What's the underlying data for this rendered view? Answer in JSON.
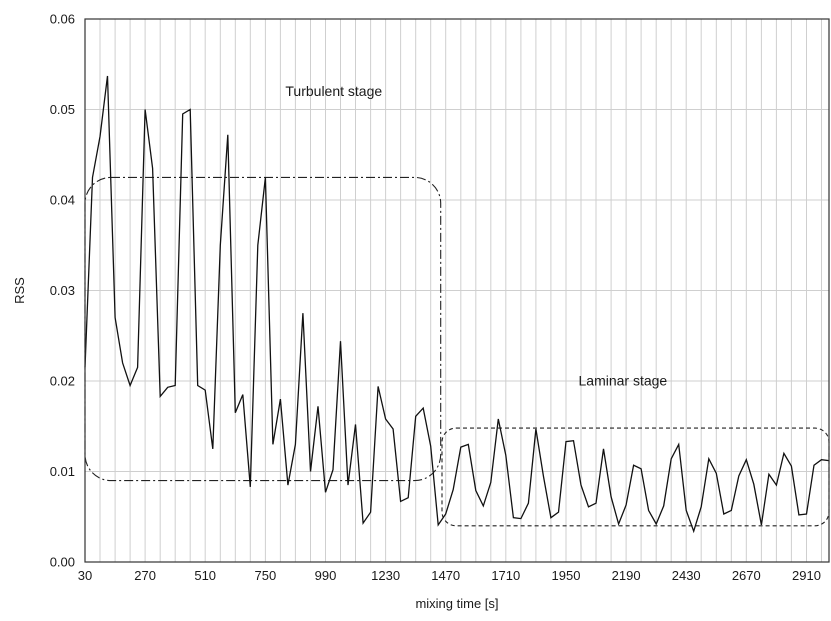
{
  "chart_data": {
    "type": "line",
    "title": "",
    "xlabel": "mixing time [s]",
    "ylabel": "RSS",
    "xlim": [
      30,
      3000
    ],
    "ylim": [
      0,
      0.06
    ],
    "grid": true,
    "x_ticks": [
      30,
      270,
      510,
      750,
      990,
      1230,
      1470,
      1710,
      1950,
      2190,
      2430,
      2670,
      2910
    ],
    "y_ticks": [
      0.0,
      0.01,
      0.02,
      0.03,
      0.04,
      0.05,
      0.06
    ],
    "y_tick_labels": [
      "0.00",
      "0.01",
      "0.02",
      "0.03",
      "0.04",
      "0.05",
      "0.06"
    ],
    "x_grid_step": 60,
    "series": [
      {
        "x": [
          30,
          60,
          90,
          120,
          150,
          180,
          210,
          240,
          270,
          300,
          330,
          360,
          390,
          420,
          450,
          480,
          510,
          540,
          570,
          600,
          630,
          660,
          690,
          720,
          750,
          780,
          810,
          840,
          870,
          900,
          930,
          960,
          990,
          1020,
          1050,
          1080,
          1110,
          1140,
          1170,
          1200,
          1230,
          1260,
          1290,
          1320,
          1350,
          1380,
          1410,
          1440,
          1470,
          1500,
          1530,
          1560,
          1590,
          1620,
          1650,
          1680,
          1710,
          1740,
          1770,
          1800,
          1830,
          1860,
          1890,
          1920,
          1950,
          1980,
          2010,
          2040,
          2070,
          2100,
          2130,
          2160,
          2190,
          2220,
          2250,
          2280,
          2310,
          2340,
          2370,
          2400,
          2430,
          2460,
          2490,
          2520,
          2550,
          2580,
          2610,
          2640,
          2670,
          2700,
          2730,
          2760,
          2790,
          2820,
          2850,
          2880,
          2910,
          2940,
          2970,
          3000
        ],
        "values": [
          0.0215,
          0.0425,
          0.047,
          0.0537,
          0.027,
          0.022,
          0.0195,
          0.0215,
          0.05,
          0.0435,
          0.0183,
          0.0193,
          0.0195,
          0.0495,
          0.05,
          0.0195,
          0.019,
          0.0125,
          0.035,
          0.0472,
          0.0165,
          0.0185,
          0.0083,
          0.035,
          0.0425,
          0.013,
          0.018,
          0.0085,
          0.013,
          0.0275,
          0.01,
          0.0172,
          0.0077,
          0.0102,
          0.0244,
          0.0085,
          0.0152,
          0.0043,
          0.0055,
          0.0194,
          0.0158,
          0.0147,
          0.0067,
          0.0071,
          0.0161,
          0.017,
          0.0128,
          0.0041,
          0.0053,
          0.008,
          0.0127,
          0.013,
          0.0079,
          0.0062,
          0.0088,
          0.0158,
          0.0118,
          0.0049,
          0.0048,
          0.0065,
          0.0147,
          0.0095,
          0.0049,
          0.0055,
          0.0133,
          0.0134,
          0.0085,
          0.0061,
          0.0065,
          0.0125,
          0.0072,
          0.0042,
          0.0063,
          0.0107,
          0.0103,
          0.0057,
          0.0042,
          0.0062,
          0.0114,
          0.013,
          0.0057,
          0.0034,
          0.0061,
          0.0114,
          0.0098,
          0.0053,
          0.0057,
          0.0095,
          0.0113,
          0.0086,
          0.0041,
          0.0097,
          0.0085,
          0.012,
          0.0106,
          0.0052,
          0.0053,
          0.0107,
          0.0113,
          0.0112
        ]
      }
    ],
    "annotations": [
      {
        "text": "Turbulent stage",
        "x": 830,
        "y": 0.0515
      },
      {
        "text": "Laminar stage",
        "x": 2000,
        "y": 0.0195
      }
    ],
    "regions": [
      {
        "name": "Turbulent stage",
        "x_start": 30,
        "x_end": 1450,
        "y_start": 0.009,
        "y_end": 0.0425,
        "style": "dash-dot"
      },
      {
        "name": "Laminar stage",
        "x_start": 1455,
        "x_end": 3000,
        "y_start": 0.004,
        "y_end": 0.0148,
        "style": "dashed"
      }
    ]
  }
}
